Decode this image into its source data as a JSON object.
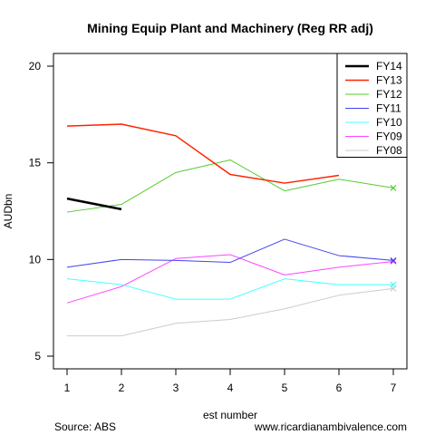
{
  "chart_data": {
    "type": "line",
    "title": "Mining Equip Plant and Machinery (Reg RR adj)",
    "xlabel": "est number",
    "ylabel": "AUDbn",
    "xlim": [
      1,
      7
    ],
    "ylim": [
      5,
      20
    ],
    "x_ticks": [
      1,
      2,
      3,
      4,
      5,
      6,
      7
    ],
    "y_ticks": [
      5,
      10,
      15,
      20
    ],
    "grid": false,
    "legend_position": "top-right",
    "series": [
      {
        "name": "FY14",
        "color": "#000000",
        "width": 2.5,
        "x": [
          1,
          2
        ],
        "values": [
          13.15,
          12.6
        ],
        "final_marker": null
      },
      {
        "name": "FY13",
        "color": "#ff2200",
        "width": 1.5,
        "x": [
          1,
          2,
          3,
          4,
          5,
          6
        ],
        "values": [
          16.9,
          17.0,
          16.4,
          14.4,
          13.95,
          14.35
        ],
        "final_marker": null
      },
      {
        "name": "FY12",
        "color": "#55cc33",
        "width": 1,
        "x": [
          1,
          2,
          3,
          4,
          5,
          6,
          7
        ],
        "values": [
          12.45,
          12.85,
          14.5,
          15.15,
          13.55,
          14.15,
          13.7
        ],
        "final_marker": "x"
      },
      {
        "name": "FY11",
        "color": "#4444ee",
        "width": 1,
        "x": [
          1,
          2,
          3,
          4,
          5,
          6,
          7
        ],
        "values": [
          9.6,
          10.0,
          9.95,
          9.85,
          11.05,
          10.2,
          9.95
        ],
        "final_marker": "x"
      },
      {
        "name": "FY10",
        "color": "#44ffff",
        "width": 1,
        "x": [
          1,
          2,
          3,
          4,
          5,
          6,
          7
        ],
        "values": [
          9.0,
          8.7,
          7.95,
          7.95,
          9.0,
          8.7,
          8.7
        ],
        "final_marker": "x"
      },
      {
        "name": "FY09",
        "color": "#ff44ff",
        "width": 1,
        "x": [
          1,
          2,
          3,
          4,
          5,
          6,
          7
        ],
        "values": [
          7.75,
          8.6,
          10.05,
          10.25,
          9.2,
          9.6,
          9.9
        ],
        "final_marker": "x"
      },
      {
        "name": "FY08",
        "color": "#cccccc",
        "width": 1,
        "x": [
          1,
          2,
          3,
          4,
          5,
          6,
          7
        ],
        "values": [
          6.05,
          6.05,
          6.7,
          6.9,
          7.45,
          8.15,
          8.5
        ],
        "final_marker": "x"
      }
    ]
  },
  "footer": {
    "source": "Source: ABS",
    "website": "www.ricardianambivalence.com"
  }
}
